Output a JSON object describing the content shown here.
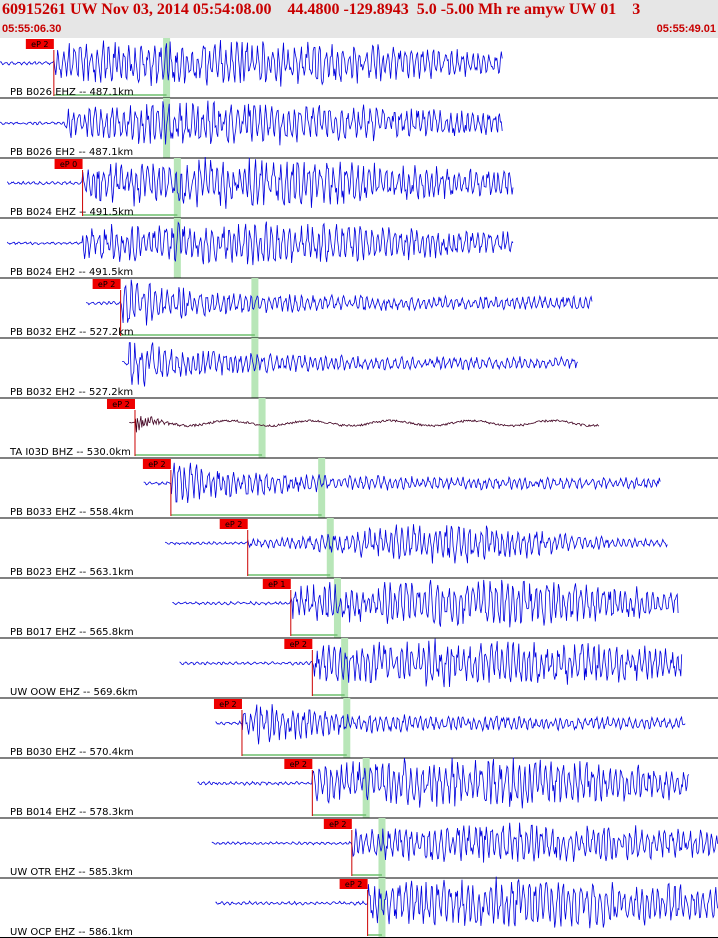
{
  "header": {
    "title": "60915261 UW Nov 03, 2014 05:54:08.00    44.4800 -129.8943  5.0 -5.00 Mh re amyw UW 01    3",
    "time_start": "05:55:06.30",
    "time_end": "05:55:49.01"
  },
  "colors": {
    "header_bg": "#e6e6e6",
    "header_text": "#c80000",
    "trace": "#0000dd",
    "trace_alt": "#400020",
    "pick_box": "#ee0000",
    "pick_line": "#cc0000",
    "green_bar": "#b8e6b8",
    "green_line": "#6fbf6f",
    "separator": "#000000"
  },
  "chart_data": {
    "type": "line",
    "title": "60915261 UW Nov 03, 2014 05:54:08.00    44.4800 -129.8943  5.0 -5.00 Mh re amyw UW 01    3",
    "time_range": [
      "05:55:06.30",
      "05:55:49.01"
    ],
    "channels": [
      {
        "label": "PB B026 EHZ -- 487.1km",
        "pick": "eP 2",
        "has_pick": true,
        "start": 0.0,
        "end": 0.7,
        "pick_t": 0.075,
        "green_t": 0.232,
        "onset": 0.075,
        "amp": 0.85,
        "style": "dense",
        "trace": "normal"
      },
      {
        "label": "PB B026 EH2 -- 487.1km",
        "pick": "",
        "has_pick": false,
        "start": 0.0,
        "end": 0.7,
        "pick_t": 0.075,
        "green_t": 0.232,
        "onset": 0.09,
        "amp": 0.75,
        "style": "dense",
        "trace": "normal"
      },
      {
        "label": "PB B024 EHZ -- 491.5km",
        "pick": "eP 0",
        "has_pick": true,
        "start": 0.01,
        "end": 0.715,
        "pick_t": 0.115,
        "green_t": 0.247,
        "onset": 0.115,
        "amp": 0.85,
        "style": "dense",
        "trace": "normal"
      },
      {
        "label": "PB B024 EH2 -- 491.5km",
        "pick": "",
        "has_pick": false,
        "start": 0.01,
        "end": 0.715,
        "pick_t": 0.115,
        "green_t": 0.247,
        "onset": 0.115,
        "amp": 0.75,
        "style": "dense",
        "trace": "normal"
      },
      {
        "label": "PB B032 EHZ -- 527.2km",
        "pick": "eP 2",
        "has_pick": true,
        "start": 0.12,
        "end": 0.825,
        "pick_t": 0.168,
        "green_t": 0.355,
        "onset": 0.168,
        "amp": 0.9,
        "style": "decay",
        "trace": "normal"
      },
      {
        "label": "PB B032 EH2 -- 527.2km",
        "pick": "",
        "has_pick": false,
        "start": 0.17,
        "end": 0.805,
        "pick_t": 0.168,
        "green_t": 0.355,
        "onset": 0.18,
        "amp": 0.85,
        "style": "decay",
        "trace": "normal"
      },
      {
        "label": "TA I03D BHZ -- 530.0km",
        "pick": "eP 2",
        "has_pick": true,
        "start": 0.18,
        "end": 0.835,
        "pick_t": 0.188,
        "green_t": 0.365,
        "onset": 0.188,
        "amp": 0.5,
        "style": "broadband",
        "trace": "alt"
      },
      {
        "label": "PB B033 EHZ -- 558.4km",
        "pick": "eP 2",
        "has_pick": true,
        "start": 0.2,
        "end": 0.92,
        "pick_t": 0.238,
        "green_t": 0.448,
        "onset": 0.238,
        "amp": 0.8,
        "style": "decay",
        "trace": "normal"
      },
      {
        "label": "PB B023 EHZ -- 563.1km",
        "pick": "eP 2",
        "has_pick": true,
        "start": 0.23,
        "end": 0.93,
        "pick_t": 0.345,
        "green_t": 0.46,
        "onset": 0.345,
        "amp": 0.7,
        "style": "late",
        "trace": "normal"
      },
      {
        "label": "PB B017 EHZ -- 565.8km",
        "pick": "eP 1",
        "has_pick": true,
        "start": 0.24,
        "end": 0.945,
        "pick_t": 0.405,
        "green_t": 0.47,
        "onset": 0.405,
        "amp": 0.8,
        "style": "dense",
        "trace": "normal"
      },
      {
        "label": "UW OOW EHZ -- 569.6km",
        "pick": "eP 2",
        "has_pick": true,
        "start": 0.25,
        "end": 0.95,
        "pick_t": 0.435,
        "green_t": 0.48,
        "onset": 0.435,
        "amp": 0.8,
        "style": "dense",
        "trace": "normal"
      },
      {
        "label": "PB B030 EHZ -- 570.4km",
        "pick": "eP 2",
        "has_pick": true,
        "start": 0.3,
        "end": 0.955,
        "pick_t": 0.337,
        "green_t": 0.483,
        "onset": 0.337,
        "amp": 0.85,
        "style": "decay",
        "trace": "normal"
      },
      {
        "label": "PB B014 EHZ -- 578.3km",
        "pick": "eP 2",
        "has_pick": true,
        "start": 0.275,
        "end": 0.96,
        "pick_t": 0.435,
        "green_t": 0.51,
        "onset": 0.435,
        "amp": 0.85,
        "style": "dense",
        "trace": "normal"
      },
      {
        "label": "UW OTR EHZ -- 585.3km",
        "pick": "eP 2",
        "has_pick": true,
        "start": 0.295,
        "end": 1.0,
        "pick_t": 0.49,
        "green_t": 0.532,
        "onset": 0.49,
        "amp": 0.7,
        "style": "dense",
        "trace": "normal"
      },
      {
        "label": "UW OCP EHZ -- 586.1km",
        "pick": "eP 2",
        "has_pick": true,
        "start": 0.3,
        "end": 1.0,
        "pick_t": 0.512,
        "green_t": 0.532,
        "onset": 0.512,
        "amp": 0.85,
        "style": "dense",
        "trace": "normal"
      }
    ]
  }
}
